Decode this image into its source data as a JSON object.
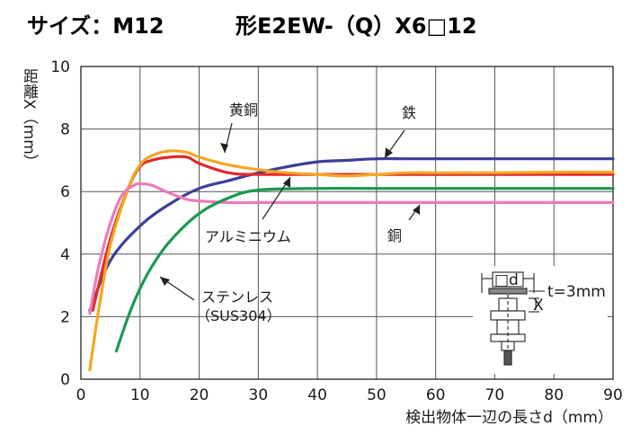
{
  "header": {
    "size_label": "サイズ：M12",
    "model_label": "形E2EW-（Q）X6□12"
  },
  "chart_data": {
    "type": "line",
    "title": "サイズ：M12 形E2EW-（Q）X6□12",
    "xlabel": "検出物体一辺の長さd（mm）",
    "ylabel": "距離X（mm）",
    "xlim": [
      0,
      90
    ],
    "ylim": [
      0,
      10
    ],
    "xticks": [
      0,
      10,
      20,
      30,
      40,
      50,
      60,
      70,
      80,
      90
    ],
    "yticks": [
      0,
      2,
      4,
      6,
      8,
      10
    ],
    "grid": true,
    "series": [
      {
        "name": "鉄",
        "color": "#3b3f99",
        "x": [
          1.5,
          5,
          10,
          15,
          20,
          25,
          30,
          35,
          40,
          45,
          50,
          55,
          60,
          70,
          80,
          90
        ],
        "y": [
          2.2,
          3.8,
          4.9,
          5.6,
          6.1,
          6.35,
          6.6,
          6.8,
          6.95,
          7.0,
          7.05,
          7.05,
          7.05,
          7.05,
          7.05,
          7.05
        ]
      },
      {
        "name": "黄銅",
        "color": "#e02a2a",
        "x": [
          2,
          5,
          8,
          10,
          12,
          15,
          18,
          20,
          25,
          30,
          40,
          50,
          60,
          70,
          80,
          90
        ],
        "y": [
          2.2,
          4.5,
          6.1,
          6.8,
          7.0,
          7.1,
          7.1,
          6.9,
          6.6,
          6.55,
          6.55,
          6.55,
          6.55,
          6.55,
          6.55,
          6.55
        ]
      },
      {
        "name": "アルミニウム",
        "color": "#f5a623",
        "x": [
          1.5,
          3,
          5,
          8,
          10,
          12,
          15,
          18,
          20,
          25,
          30,
          35,
          40,
          45,
          50,
          55,
          60,
          70,
          80,
          90
        ],
        "y": [
          0.3,
          2.2,
          4.3,
          6.1,
          6.85,
          7.15,
          7.3,
          7.25,
          7.1,
          6.85,
          6.7,
          6.6,
          6.55,
          6.5,
          6.55,
          6.6,
          6.6,
          6.6,
          6.62,
          6.62
        ]
      },
      {
        "name": "銅",
        "color": "#f07aba",
        "x": [
          1.5,
          3,
          5,
          7,
          9,
          10,
          12,
          15,
          18,
          20,
          25,
          30,
          40,
          50,
          60,
          70,
          80,
          90
        ],
        "y": [
          2.1,
          3.6,
          5.0,
          5.9,
          6.2,
          6.25,
          6.2,
          5.95,
          5.75,
          5.7,
          5.65,
          5.65,
          5.65,
          5.65,
          5.65,
          5.65,
          5.65,
          5.65
        ]
      },
      {
        "name": "ステンレス（SUS304）",
        "color": "#1a9a50",
        "x": [
          6,
          8,
          10,
          12,
          15,
          20,
          25,
          30,
          40,
          50,
          60,
          70,
          80,
          90
        ],
        "y": [
          0.9,
          2.0,
          2.9,
          3.6,
          4.4,
          5.3,
          5.8,
          6.05,
          6.1,
          6.1,
          6.1,
          6.1,
          6.1,
          6.1
        ]
      }
    ],
    "annotations": [
      "黄銅",
      "鉄",
      "アルミニウム",
      "銅",
      "ステンレス",
      "（SUS304）",
      "t=3mm",
      "□d",
      "X"
    ]
  }
}
